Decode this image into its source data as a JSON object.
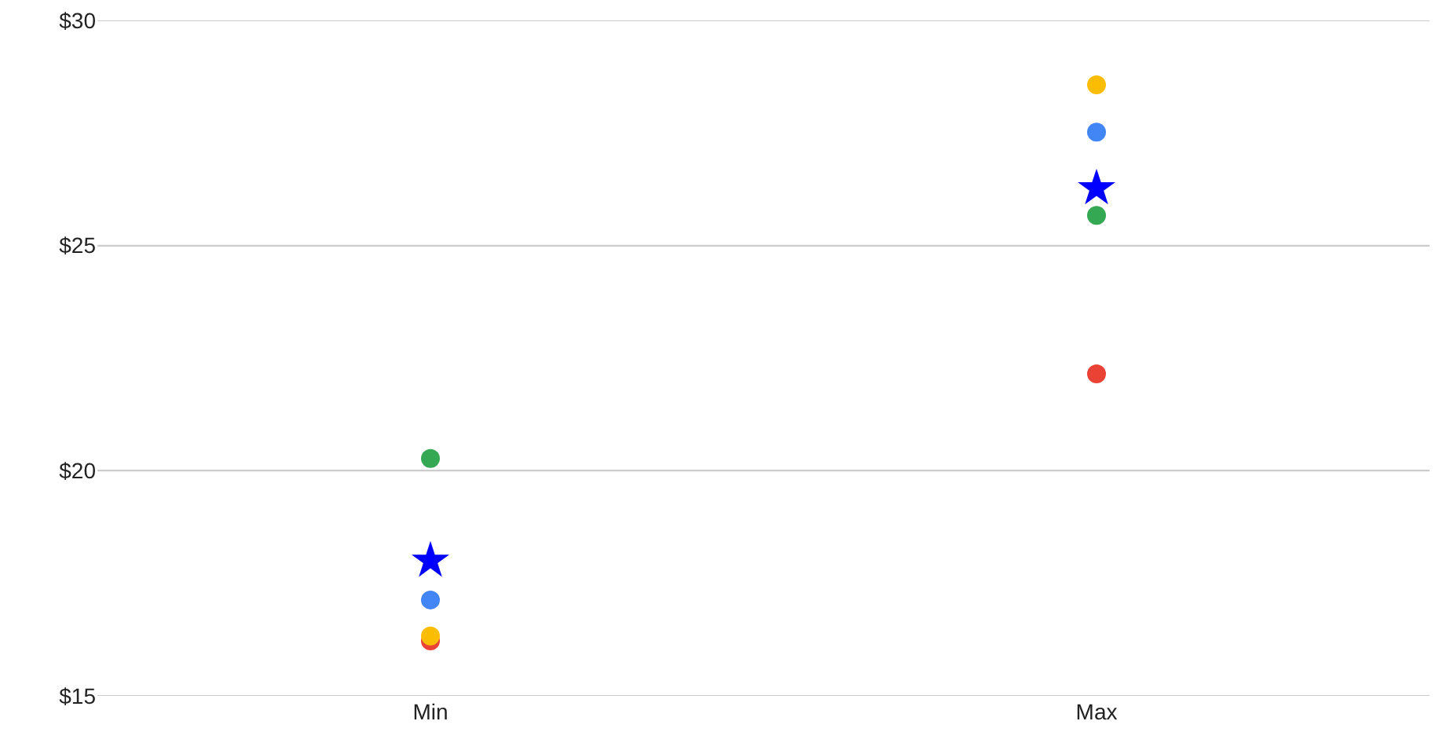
{
  "chart_data": {
    "type": "scatter",
    "categories": [
      "Min",
      "Max"
    ],
    "series": [
      {
        "color": "#4285f4",
        "values": [
          17.13,
          27.52
        ],
        "marker": "circle"
      },
      {
        "color": "#ea4335",
        "values": [
          16.22,
          22.15
        ],
        "marker": "circle"
      },
      {
        "color": "#fbbc04",
        "values": [
          16.33,
          28.57
        ],
        "marker": "circle"
      },
      {
        "color": "#34a853",
        "values": [
          20.27,
          25.67
        ],
        "marker": "circle"
      },
      {
        "color": "#0000ff",
        "values": [
          18.0,
          26.27
        ],
        "marker": "star"
      }
    ],
    "ylim": [
      15,
      30
    ],
    "yticks": [
      {
        "value": 15,
        "label": "$15"
      },
      {
        "value": 20,
        "label": "$20"
      },
      {
        "value": 25,
        "label": "$25"
      },
      {
        "value": 30,
        "label": "$30"
      }
    ],
    "grid": "y"
  }
}
